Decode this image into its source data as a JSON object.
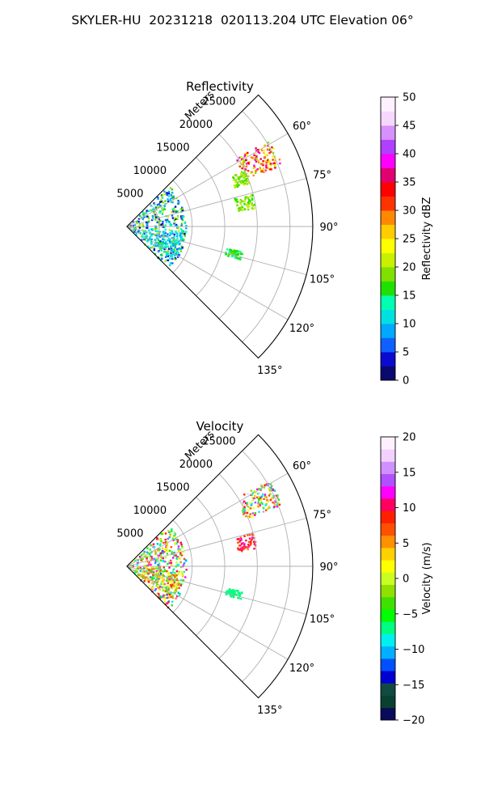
{
  "title": "SKYLER-HU  20231218  020113.204 UTC Elevation 06°",
  "chart_data": [
    {
      "type": "heatmap",
      "title": "Reflectivity",
      "projection": "polar sector (PPI)",
      "theta_range_deg": [
        45,
        135
      ],
      "r_range_m": [
        0,
        28500
      ],
      "radial_label": "Meters",
      "radial_ticks": [
        "5000",
        "10000",
        "15000",
        "20000",
        "25000"
      ],
      "angle_ticks": [
        "60°",
        "75°",
        "90°",
        "105°",
        "120°",
        "135°"
      ],
      "grid": true,
      "colorbar": {
        "label": "Reflectivity dBZ",
        "range": [
          0,
          50
        ],
        "ticks": [
          "0",
          "5",
          "10",
          "15",
          "20",
          "25",
          "30",
          "35",
          "40",
          "45",
          "50"
        ]
      },
      "echo_regions": [
        {
          "theta_deg": [
            58,
            68
          ],
          "r_m": [
            19500,
            25500
          ],
          "value_dbz": [
            18,
            40
          ]
        },
        {
          "theta_deg": [
            64,
            70
          ],
          "r_m": [
            17500,
            20000
          ],
          "value_dbz": [
            16,
            22
          ]
        },
        {
          "theta_deg": [
            75,
            82
          ],
          "r_m": [
            17000,
            20000
          ],
          "value_dbz": [
            16,
            22
          ]
        },
        {
          "theta_deg": [
            102,
            106
          ],
          "r_m": [
            15500,
            18000
          ],
          "value_dbz": [
            14,
            18
          ]
        },
        {
          "theta_deg": [
            45,
            135
          ],
          "r_m": [
            0,
            9000
          ],
          "value_dbz": [
            2,
            22
          ]
        },
        {
          "theta_deg": [
            95,
            125
          ],
          "r_m": [
            2500,
            8500
          ],
          "value_dbz": [
            8,
            14
          ]
        }
      ]
    },
    {
      "type": "heatmap",
      "title": "Velocity",
      "projection": "polar sector (PPI)",
      "theta_range_deg": [
        45,
        135
      ],
      "r_range_m": [
        0,
        28500
      ],
      "radial_label": "Meters",
      "radial_ticks": [
        "5000",
        "10000",
        "15000",
        "20000",
        "25000"
      ],
      "angle_ticks": [
        "60°",
        "75°",
        "90°",
        "105°",
        "120°",
        "135°"
      ],
      "grid": true,
      "colorbar": {
        "label": "Velocity (m/s)",
        "range": [
          -20,
          20
        ],
        "ticks": [
          "−20",
          "−15",
          "−10",
          "−5",
          "0",
          "5",
          "10",
          "15",
          "20"
        ]
      },
      "echo_regions": [
        {
          "theta_deg": [
            58,
            68
          ],
          "r_m": [
            19500,
            25500
          ],
          "value_ms": [
            -10,
            18
          ]
        },
        {
          "theta_deg": [
            75,
            82
          ],
          "r_m": [
            17000,
            20000
          ],
          "value_ms": [
            6,
            12
          ]
        },
        {
          "theta_deg": [
            102,
            106
          ],
          "r_m": [
            15500,
            18000
          ],
          "value_ms": [
            -8,
            -6
          ]
        },
        {
          "theta_deg": [
            45,
            135
          ],
          "r_m": [
            0,
            9000
          ],
          "value_ms": [
            -12,
            14
          ]
        },
        {
          "theta_deg": [
            95,
            125
          ],
          "r_m": [
            2500,
            8500
          ],
          "value_ms": [
            -4,
            8
          ]
        }
      ]
    }
  ]
}
